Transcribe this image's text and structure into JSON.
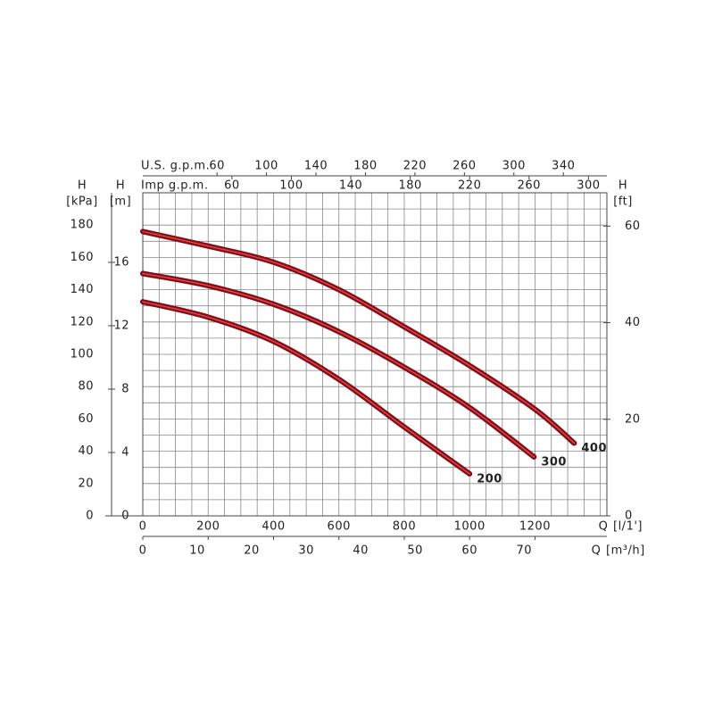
{
  "chart_data": {
    "type": "line",
    "color": "#a3121b",
    "grid": {
      "x_step": 50,
      "y_step": 10
    },
    "xlim": [
      0,
      1420
    ],
    "xticks": [
      0,
      200,
      400,
      600,
      800,
      1000,
      1200
    ],
    "x_title": "Q",
    "x_unit": "[l/1']",
    "ylim": [
      0,
      200
    ],
    "yticks": [
      0,
      20,
      40,
      60,
      80,
      100,
      120,
      140,
      160,
      180
    ],
    "y_title": "H",
    "y_unit": "[kPa]",
    "extra_axes": [
      {
        "side": "left",
        "title": "H",
        "unit": "[m]",
        "lim": [
          0,
          20.39
        ],
        "ticks": [
          0,
          4,
          8,
          12,
          16
        ]
      },
      {
        "side": "right",
        "title": "H",
        "unit": "[ft]",
        "lim": [
          0,
          66.9
        ],
        "ticks": [
          0,
          20,
          40,
          60
        ]
      },
      {
        "side": "bottom",
        "title": "Q",
        "unit": "[m³/h]",
        "lim": [
          0,
          85.2
        ],
        "ticks": [
          0,
          10,
          20,
          30,
          40,
          50,
          60,
          70
        ]
      },
      {
        "side": "top",
        "title": "U.S. g.p.m.",
        "lim": [
          0,
          375.2
        ],
        "ticks": [
          60,
          100,
          140,
          180,
          220,
          260,
          300,
          340
        ]
      },
      {
        "side": "top2",
        "title": "Imp g.p.m.",
        "lim": [
          0,
          312.4
        ],
        "ticks": [
          60,
          100,
          140,
          180,
          220,
          260,
          300
        ]
      }
    ],
    "series": [
      {
        "name": "200",
        "x": [
          0,
          200,
          400,
          600,
          800,
          1000
        ],
        "values": [
          132.5,
          123,
          108,
          84.5,
          55,
          26
        ]
      },
      {
        "name": "300",
        "x": [
          0,
          200,
          400,
          600,
          800,
          1000,
          1197
        ],
        "values": [
          150,
          142.5,
          131,
          114,
          92,
          67,
          36.5
        ]
      },
      {
        "name": "400",
        "x": [
          0,
          200,
          400,
          600,
          800,
          1000,
          1200,
          1320
        ],
        "values": [
          176,
          167,
          157,
          140,
          117,
          93,
          66,
          45
        ]
      }
    ]
  }
}
